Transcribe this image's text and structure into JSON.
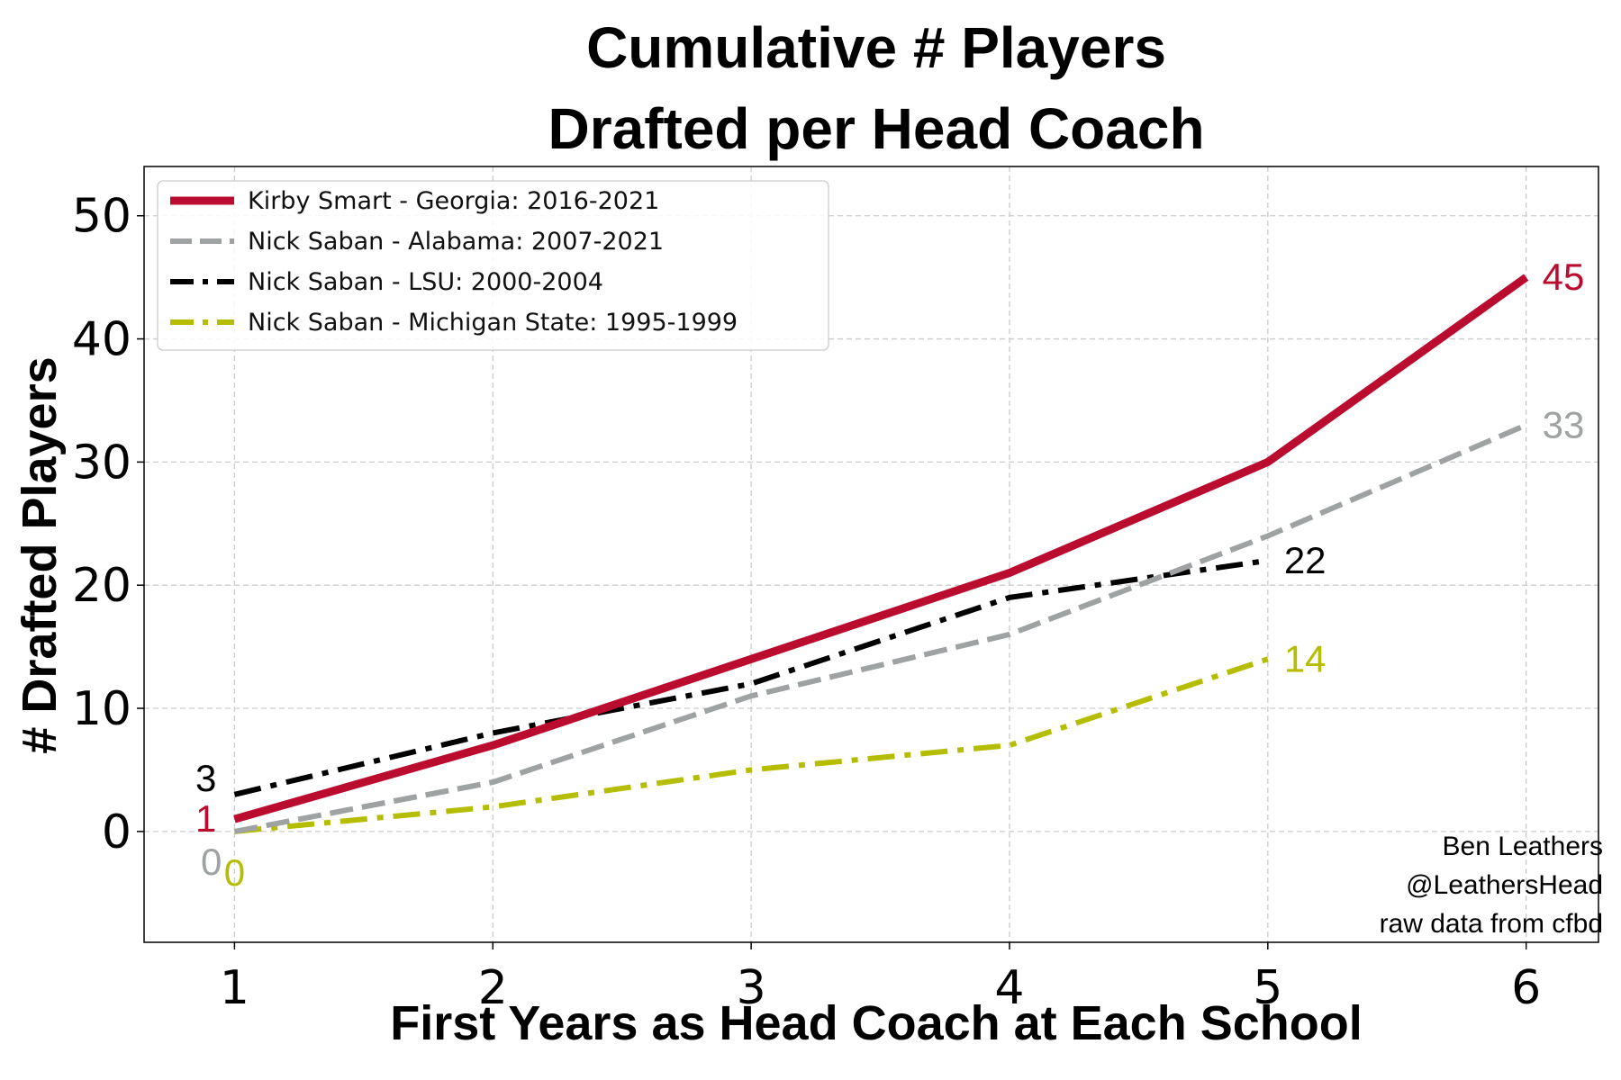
{
  "chart_data": {
    "type": "line",
    "title_lines": [
      "Cumulative # Players",
      "Drafted per Head Coach"
    ],
    "xlabel": "First Years as Head Coach at Each School",
    "ylabel": "# Drafted Players",
    "xlim": [
      0.65,
      6.28
    ],
    "ylim": [
      -9,
      54
    ],
    "x_ticks": [
      1,
      2,
      3,
      4,
      5,
      6
    ],
    "y_ticks": [
      0,
      10,
      20,
      30,
      40,
      50
    ],
    "grid": true,
    "legend_position": "top-left",
    "series": [
      {
        "name": "Kirby Smart - Georgia: 2016-2021",
        "x": [
          1,
          2,
          3,
          4,
          5,
          6
        ],
        "y": [
          1,
          7,
          14,
          21,
          30,
          45
        ],
        "color": "#ba0c2f",
        "style": "solid"
      },
      {
        "name": "Nick Saban - Alabama: 2007-2021",
        "x": [
          1,
          2,
          3,
          4,
          5,
          6
        ],
        "y": [
          0,
          4,
          11,
          16,
          24,
          33
        ],
        "color": "#9ea2a2",
        "style": "dashed"
      },
      {
        "name": "Nick Saban - LSU: 2000-2004",
        "x": [
          1,
          2,
          3,
          4,
          5
        ],
        "y": [
          3,
          8,
          12,
          19,
          22
        ],
        "color": "#000000",
        "style": "dashdot"
      },
      {
        "name": "Nick Saban - Michigan State: 1995-1999",
        "x": [
          1,
          2,
          3,
          4,
          5
        ],
        "y": [
          0,
          2,
          5,
          7,
          14
        ],
        "color": "#b5bd00",
        "style": "dashdot"
      }
    ],
    "end_labels": [
      {
        "text": "45",
        "color": "#ba0c2f"
      },
      {
        "text": "33",
        "color": "#9ea2a2"
      },
      {
        "text": "22",
        "color": "#000000"
      },
      {
        "text": "14",
        "color": "#b5bd00"
      }
    ],
    "start_labels": [
      {
        "text": "3",
        "color": "#000000"
      },
      {
        "text": "1",
        "color": "#ba0c2f"
      },
      {
        "text": "0",
        "color": "#9ea2a2"
      },
      {
        "text": "0",
        "color": "#b5bd00"
      }
    ],
    "credit_lines": [
      "Ben Leathers",
      "@LeathersHead",
      "raw data from cfbd"
    ]
  }
}
